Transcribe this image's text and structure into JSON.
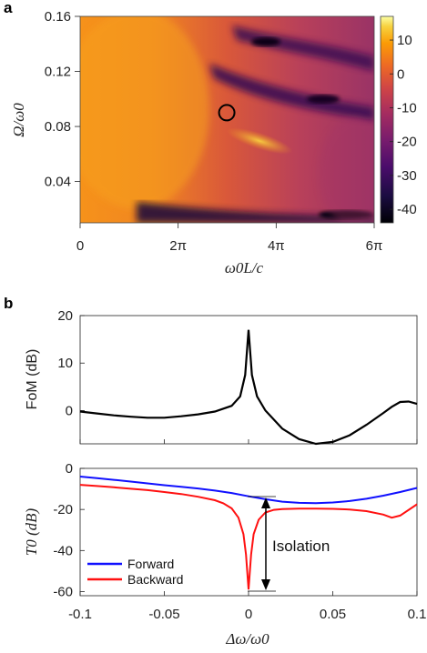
{
  "chart_data": [
    {
      "panel_label": "a",
      "type": "heatmap",
      "xlabel": "ω0L/c",
      "ylabel": "Ω/ω0",
      "xlim": [
        0,
        18.85
      ],
      "ylim": [
        0.01,
        0.16
      ],
      "x_ticks": [
        {
          "value": 0,
          "label": "0"
        },
        {
          "value": 6.283,
          "label": "2π"
        },
        {
          "value": 12.566,
          "label": "4π"
        },
        {
          "value": 18.85,
          "label": "6π"
        }
      ],
      "y_ticks": [
        {
          "value": 0.04,
          "label": "0.04"
        },
        {
          "value": 0.08,
          "label": "0.08"
        },
        {
          "value": 0.12,
          "label": "0.12"
        },
        {
          "value": 0.16,
          "label": "0.16"
        }
      ],
      "colorbar": {
        "range": [
          -44,
          17
        ],
        "ticks": [
          {
            "value": 10,
            "label": "10"
          },
          {
            "value": 0,
            "label": "0"
          },
          {
            "value": -10,
            "label": "-10"
          },
          {
            "value": -20,
            "label": "-20"
          },
          {
            "value": -30,
            "label": "-30"
          },
          {
            "value": -40,
            "label": "-40"
          }
        ]
      },
      "marker": {
        "x": 9.4,
        "y": 0.09,
        "shape": "circle"
      }
    },
    {
      "panel_label": "b",
      "type": "line",
      "ylabel": "FoM (dB)",
      "xlim": [
        -0.1,
        0.1
      ],
      "ylim": [
        -7,
        20
      ],
      "y_ticks": [
        0,
        10,
        20
      ],
      "series": [
        {
          "name": "",
          "color": "#000000",
          "x": [
            -0.1,
            -0.09,
            -0.08,
            -0.07,
            -0.06,
            -0.05,
            -0.04,
            -0.03,
            -0.02,
            -0.01,
            -0.005,
            -0.002,
            0,
            0.002,
            0.005,
            0.01,
            0.02,
            0.03,
            0.04,
            0.05,
            0.06,
            0.07,
            0.08,
            0.085,
            0.09,
            0.095,
            0.1
          ],
          "y": [
            -0.2,
            -0.6,
            -1.0,
            -1.3,
            -1.5,
            -1.5,
            -1.2,
            -0.8,
            -0.2,
            1.0,
            3.0,
            7.5,
            17,
            7.5,
            3.0,
            0.0,
            -3.8,
            -6.0,
            -7.0,
            -6.6,
            -5.2,
            -3.0,
            -0.5,
            0.8,
            1.8,
            1.9,
            1.4
          ]
        }
      ]
    },
    {
      "type": "line",
      "xlabel": "Δω/ω0",
      "ylabel": "T0 (dB)",
      "xlim": [
        -0.1,
        0.1
      ],
      "ylim": [
        -62,
        0
      ],
      "x_ticks": [
        {
          "value": -0.1,
          "label": "-0.1"
        },
        {
          "value": -0.05,
          "label": "-0.05"
        },
        {
          "value": 0,
          "label": "0"
        },
        {
          "value": 0.05,
          "label": "0.05"
        },
        {
          "value": 0.1,
          "label": "0.1"
        }
      ],
      "y_ticks": [
        0,
        -20,
        -40,
        -60
      ],
      "legend_placement": "bottom-left",
      "annotation": "Isolation",
      "series": [
        {
          "name": "Forward",
          "color": "#1010ff",
          "x": [
            -0.1,
            -0.09,
            -0.08,
            -0.07,
            -0.06,
            -0.05,
            -0.04,
            -0.03,
            -0.02,
            -0.01,
            0,
            0.01,
            0.02,
            0.03,
            0.04,
            0.05,
            0.06,
            0.07,
            0.08,
            0.09,
            0.1
          ],
          "y": [
            -4.0,
            -4.8,
            -5.6,
            -6.4,
            -7.3,
            -8.2,
            -9.0,
            -9.8,
            -10.8,
            -12.0,
            -13.6,
            -15.0,
            -16.2,
            -16.8,
            -16.9,
            -16.6,
            -15.9,
            -14.8,
            -13.3,
            -11.5,
            -9.5
          ]
        },
        {
          "name": "Backward",
          "color": "#ff1010",
          "x": [
            -0.1,
            -0.09,
            -0.08,
            -0.07,
            -0.06,
            -0.05,
            -0.04,
            -0.03,
            -0.02,
            -0.015,
            -0.01,
            -0.006,
            -0.003,
            -0.0015,
            0,
            0.0015,
            0.003,
            0.006,
            0.01,
            0.015,
            0.02,
            0.03,
            0.04,
            0.05,
            0.06,
            0.07,
            0.08,
            0.085,
            0.09,
            0.1
          ],
          "y": [
            -8.0,
            -8.6,
            -9.2,
            -9.9,
            -10.6,
            -11.5,
            -12.5,
            -13.8,
            -15.5,
            -17.0,
            -19.5,
            -24.0,
            -32.0,
            -42.0,
            -59.0,
            -42.0,
            -32.0,
            -25.0,
            -21.5,
            -20.2,
            -19.8,
            -19.6,
            -19.6,
            -19.7,
            -20.0,
            -20.8,
            -22.5,
            -24.0,
            -23.0,
            -17.5
          ]
        }
      ]
    }
  ]
}
